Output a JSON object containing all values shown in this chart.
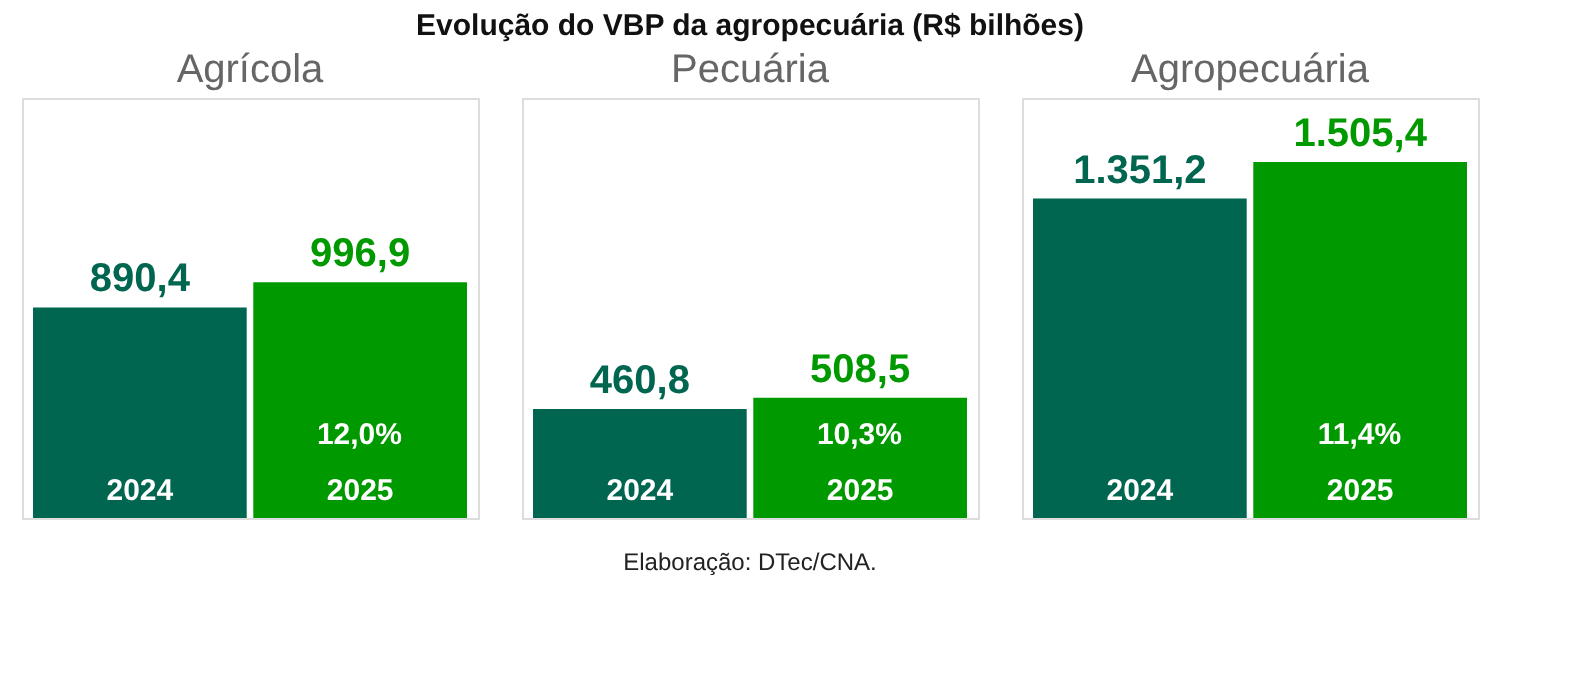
{
  "chart_data": [
    {
      "type": "bar",
      "title": "Agrícola",
      "categories": [
        "2024",
        "2025"
      ],
      "values": [
        890.4,
        996.9
      ],
      "colors": [
        "#00664f",
        "#009900"
      ],
      "value_labels": [
        "890,4",
        "996,9"
      ],
      "annotations": [
        "12,0%"
      ]
    },
    {
      "type": "bar",
      "title": "Pecuária",
      "categories": [
        "2024",
        "2025"
      ],
      "values": [
        460.8,
        508.5
      ],
      "colors": [
        "#00664f",
        "#009900"
      ],
      "value_labels": [
        "460,8",
        "508,5"
      ],
      "annotations": [
        "10,3%",
        "Evolução do VBP da agropecuária (R$ bilhões)",
        "Elaboração: DTec/CNA."
      ]
    },
    {
      "type": "bar",
      "title": "Agropecuária",
      "categories": [
        "2024",
        "2025"
      ],
      "values": [
        1351.2,
        1505.4
      ],
      "colors": [
        "#00664f",
        "#009900"
      ],
      "value_labels": [
        "1.351,2",
        "1.505,4"
      ],
      "annotations": [
        "11,4%"
      ]
    }
  ]
}
